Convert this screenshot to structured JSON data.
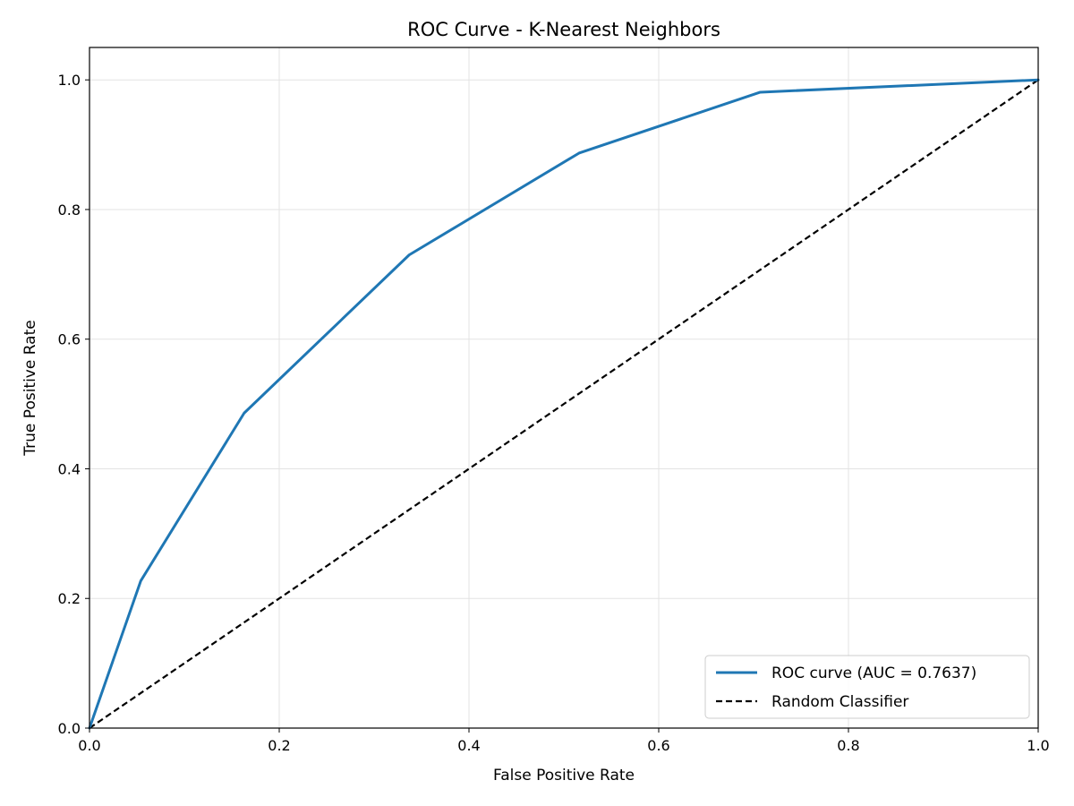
{
  "chart_data": {
    "type": "line",
    "title": "ROC Curve - K-Nearest Neighbors",
    "xlabel": "False Positive Rate",
    "ylabel": "True Positive Rate",
    "xlim": [
      0.0,
      1.0
    ],
    "ylim": [
      0.0,
      1.05
    ],
    "xticks": [
      0.0,
      0.2,
      0.4,
      0.6,
      0.8,
      1.0
    ],
    "yticks": [
      0.0,
      0.2,
      0.4,
      0.6,
      0.8,
      1.0
    ],
    "xtick_labels": [
      "0.0",
      "0.2",
      "0.4",
      "0.6",
      "0.8",
      "1.0"
    ],
    "ytick_labels": [
      "0.0",
      "0.2",
      "0.4",
      "0.6",
      "0.8",
      "1.0"
    ],
    "grid": true,
    "legend_position": "bottom-right",
    "series": [
      {
        "name": "ROC curve (AUC = 0.7637)",
        "style": "solid",
        "color": "#1f77b4",
        "x": [
          0.0,
          0.054,
          0.163,
          0.337,
          0.516,
          0.707,
          1.0
        ],
        "y": [
          0.0,
          0.227,
          0.486,
          0.73,
          0.887,
          0.981,
          1.0
        ]
      },
      {
        "name": "Random Classifier",
        "style": "dashed",
        "color": "#000000",
        "x": [
          0.0,
          1.0
        ],
        "y": [
          0.0,
          1.0
        ]
      }
    ]
  }
}
